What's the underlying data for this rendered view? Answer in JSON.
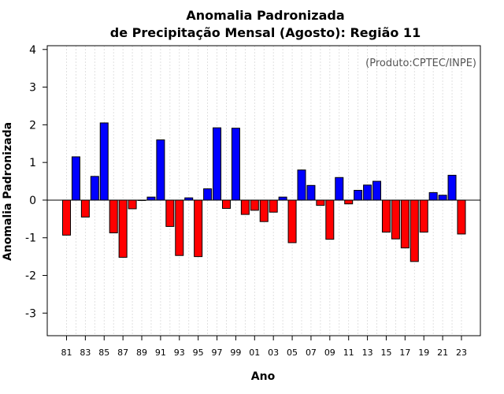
{
  "chart_data": {
    "type": "bar",
    "title": [
      "Anomalia Padronizada",
      "de Precipitação Mensal (Agosto): Região 11"
    ],
    "xlabel": "Ano",
    "ylabel": "Anomalia Padronizada",
    "source_note": "(Produto:CPTEC/INPE)",
    "ylim": [
      -3.6,
      4.1
    ],
    "yticks": [
      -3,
      -2,
      -1,
      0,
      1,
      2,
      3,
      4
    ],
    "xtick_labels": [
      "81",
      "83",
      "85",
      "87",
      "89",
      "91",
      "93",
      "95",
      "97",
      "99",
      "01",
      "03",
      "05",
      "07",
      "09",
      "11",
      "13",
      "15",
      "17",
      "19",
      "21",
      "23"
    ],
    "positive_color": "#0000ff",
    "negative_color": "#ff0000",
    "categories": [
      "1981",
      "1982",
      "1983",
      "1984",
      "1985",
      "1986",
      "1987",
      "1988",
      "1989",
      "1990",
      "1991",
      "1992",
      "1993",
      "1994",
      "1995",
      "1996",
      "1997",
      "1998",
      "1999",
      "2000",
      "2001",
      "2002",
      "2003",
      "2004",
      "2005",
      "2006",
      "2007",
      "2008",
      "2009",
      "2010",
      "2011",
      "2012",
      "2013",
      "2014",
      "2015",
      "2016",
      "2017",
      "2018",
      "2019",
      "2020",
      "2021",
      "2022",
      "2023"
    ],
    "values": [
      -0.93,
      1.15,
      -0.45,
      0.63,
      2.05,
      -0.87,
      -1.52,
      -0.23,
      0.0,
      0.08,
      1.6,
      -0.7,
      -1.47,
      0.06,
      -1.5,
      0.3,
      1.92,
      -0.22,
      1.91,
      -0.38,
      -0.27,
      -0.57,
      -0.32,
      0.08,
      -1.13,
      0.8,
      0.39,
      -0.14,
      -1.04,
      0.6,
      -0.1,
      0.26,
      0.4,
      0.5,
      -0.85,
      -1.03,
      -1.27,
      -1.63,
      -0.85,
      0.2,
      0.13,
      0.66,
      -0.9
    ]
  }
}
